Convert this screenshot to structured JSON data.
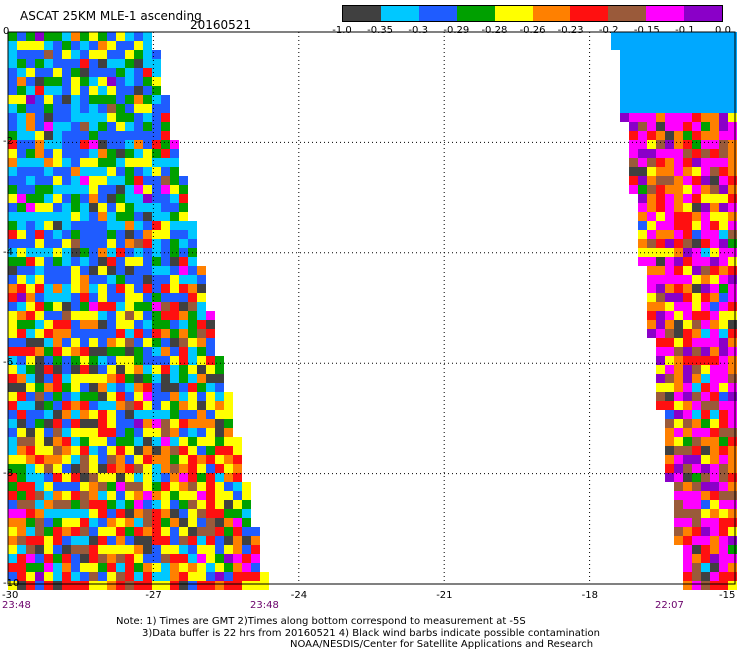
{
  "header": {
    "title": "ASCAT 25KM MLE-1 ascending",
    "date": "20160521"
  },
  "legend": {
    "colors": [
      "#404040",
      "#00c8ff",
      "#1f5cff",
      "#00a000",
      "#ffff00",
      "#ff8000",
      "#ff1010",
      "#9a5a3a",
      "#ff00ff",
      "#8a00c8"
    ],
    "labels": [
      "-1.0",
      "-0.35",
      "-0.3",
      "-0.29",
      "-0.28",
      "-0.26",
      "-0.23",
      "-0.2",
      "-0.15",
      "-0.1",
      "0.0"
    ]
  },
  "map": {
    "x_ticks": [
      "-30",
      "-27",
      "-24",
      "-21",
      "-18",
      "-15"
    ],
    "y_ticks": [
      "0",
      "-2",
      "-4",
      "-6",
      "-8",
      "-10"
    ],
    "time_labels": {
      "left_start": "23:48",
      "left_end": "23:48",
      "right": "22:07"
    }
  },
  "notes": {
    "line1": "Note: 1) Times are GMT 2)Times along bottom correspond to measurement at -5S",
    "line2": "3)Data buffer is 22 hrs from 20160521 4) Black wind barbs indicate possible contamination",
    "line3": "NOAA/NESDIS/Center for Satellite Applications and Research"
  }
}
